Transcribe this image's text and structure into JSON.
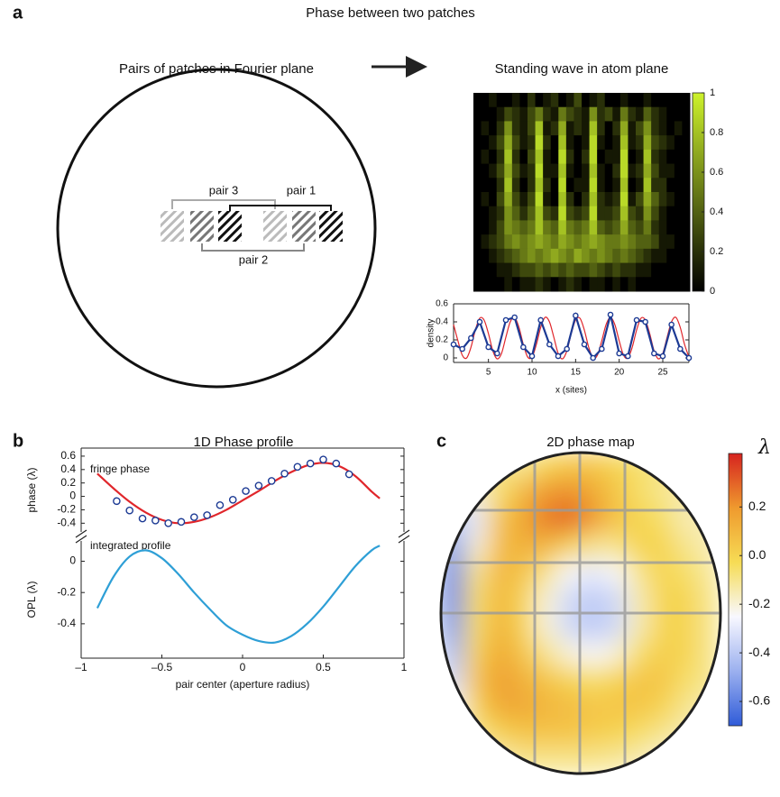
{
  "panels": {
    "a": {
      "label": "a",
      "title": "Phase between two patches",
      "left_title": "Pairs of patches in Fourier plane",
      "right_title": "Standing wave in atom plane",
      "pairs": [
        "pair 3",
        "pair 1",
        "pair 2"
      ]
    },
    "b": {
      "label": "b",
      "title": "1D Phase profile"
    },
    "c": {
      "label": "c",
      "title": "2D phase map"
    }
  },
  "chart_data": [
    {
      "type": "heatmap",
      "values": [
        [
          0,
          0,
          0.1,
          0,
          0,
          0.1,
          0,
          0.2,
          0,
          0.1,
          0.2,
          0,
          0.1,
          0.3,
          0,
          0.1,
          0.2,
          0,
          0,
          0.1,
          0,
          0,
          0.1,
          0,
          0,
          0,
          0,
          0
        ],
        [
          0,
          0,
          0,
          0.1,
          0.3,
          0.2,
          0.1,
          0.3,
          0.5,
          0.2,
          0.1,
          0.5,
          0.3,
          0.2,
          0.1,
          0.6,
          0.2,
          0.3,
          0.1,
          0.5,
          0.2,
          0.1,
          0.4,
          0.2,
          0.1,
          0,
          0,
          0
        ],
        [
          0,
          0.1,
          0,
          0.2,
          0.6,
          0.2,
          0.1,
          0.3,
          0.8,
          0.1,
          0.2,
          0.7,
          0.1,
          0.2,
          0.1,
          0.8,
          0.2,
          0,
          0.2,
          0.7,
          0.1,
          0.3,
          0.6,
          0.2,
          0.1,
          0,
          0.1,
          0
        ],
        [
          0,
          0,
          0.1,
          0.3,
          0.7,
          0.3,
          0.1,
          0.2,
          0.9,
          0.2,
          0,
          0.8,
          0.1,
          0,
          0.1,
          0.9,
          0.1,
          0,
          0.1,
          0.8,
          0.1,
          0.2,
          0.7,
          0.3,
          0.2,
          0.1,
          0,
          0
        ],
        [
          0,
          0.1,
          0,
          0.2,
          0.8,
          0.2,
          0,
          0.3,
          0.8,
          0.1,
          0,
          0.9,
          0.2,
          0,
          0.2,
          0.9,
          0,
          0.1,
          0.1,
          0.9,
          0,
          0.1,
          0.8,
          0.2,
          0.1,
          0,
          0,
          0
        ],
        [
          0,
          0,
          0.1,
          0.3,
          0.7,
          0.3,
          0.1,
          0.2,
          0.9,
          0.1,
          0.1,
          0.8,
          0.1,
          0,
          0.1,
          0.8,
          0.1,
          0,
          0.2,
          0.9,
          0.1,
          0.2,
          0.7,
          0.3,
          0.1,
          0.1,
          0,
          0
        ],
        [
          0,
          0,
          0,
          0.2,
          0.8,
          0.2,
          0,
          0.2,
          0.8,
          0.2,
          0,
          0.9,
          0,
          0.1,
          0.1,
          0.9,
          0.1,
          0,
          0.1,
          0.8,
          0,
          0.1,
          0.8,
          0.2,
          0.2,
          0,
          0,
          0
        ],
        [
          0,
          0.1,
          0,
          0.3,
          0.7,
          0.3,
          0.1,
          0.3,
          0.9,
          0.1,
          0,
          0.8,
          0.2,
          0,
          0.2,
          0.8,
          0.2,
          0.1,
          0.2,
          0.9,
          0.1,
          0.3,
          0.7,
          0.4,
          0.2,
          0.1,
          0,
          0
        ],
        [
          0,
          0,
          0.1,
          0.2,
          0.6,
          0.4,
          0.2,
          0.4,
          0.8,
          0.3,
          0.2,
          0.9,
          0.3,
          0.2,
          0.3,
          0.9,
          0.2,
          0.2,
          0.3,
          0.8,
          0.3,
          0.2,
          0.6,
          0.3,
          0.1,
          0,
          0,
          0
        ],
        [
          0,
          0,
          0.1,
          0.3,
          0.6,
          0.5,
          0.4,
          0.5,
          0.8,
          0.5,
          0.4,
          0.8,
          0.5,
          0.4,
          0.5,
          0.8,
          0.4,
          0.3,
          0.4,
          0.7,
          0.4,
          0.3,
          0.5,
          0.2,
          0.1,
          0,
          0,
          0
        ],
        [
          0,
          0.1,
          0.2,
          0.3,
          0.5,
          0.6,
          0.5,
          0.6,
          0.7,
          0.6,
          0.5,
          0.7,
          0.6,
          0.5,
          0.6,
          0.7,
          0.6,
          0.5,
          0.5,
          0.6,
          0.5,
          0.4,
          0.4,
          0.3,
          0.1,
          0.1,
          0,
          0
        ],
        [
          0,
          0,
          0.1,
          0.2,
          0.3,
          0.4,
          0.5,
          0.6,
          0.5,
          0.6,
          0.7,
          0.6,
          0.5,
          0.7,
          0.6,
          0.5,
          0.6,
          0.5,
          0.4,
          0.5,
          0.4,
          0.3,
          0.2,
          0.1,
          0.1,
          0,
          0,
          0
        ],
        [
          0,
          0,
          0,
          0.1,
          0.1,
          0.2,
          0.3,
          0.3,
          0.4,
          0.3,
          0.4,
          0.3,
          0.4,
          0.3,
          0.3,
          0.4,
          0.3,
          0.2,
          0.3,
          0.2,
          0.2,
          0.1,
          0.1,
          0,
          0,
          0,
          0,
          0
        ],
        [
          0,
          0,
          0,
          0,
          0.1,
          0,
          0.1,
          0.1,
          0.2,
          0.1,
          0,
          0.1,
          0.2,
          0.1,
          0,
          0.1,
          0.1,
          0,
          0.1,
          0,
          0.1,
          0,
          0,
          0,
          0,
          0,
          0,
          0
        ]
      ],
      "zlim": [
        0,
        1
      ],
      "zticks": [
        0,
        0.2,
        0.4,
        0.6,
        0.8,
        1
      ],
      "colormap": [
        "#000000",
        "#cdf22c"
      ]
    },
    {
      "type": "line",
      "xlabel": "x (sites)",
      "ylabel": "density",
      "xlim": [
        1,
        28
      ],
      "xticks": [
        5,
        10,
        15,
        20,
        25
      ],
      "ylim": [
        -0.05,
        0.6
      ],
      "yticks": [
        0,
        0.2,
        0.4,
        0.6
      ],
      "series": [
        {
          "color": "#e0262b",
          "mode": "lines",
          "x": [
            1,
            1.5,
            2,
            2.5,
            3,
            3.5,
            4,
            4.5,
            5,
            5.5,
            6,
            6.5,
            7,
            7.5,
            8,
            8.5,
            9,
            9.5,
            10,
            10.5,
            11,
            11.5,
            12,
            12.5,
            13,
            13.5,
            14,
            14.5,
            15,
            15.5,
            16,
            16.5,
            17,
            17.5,
            18,
            18.5,
            19,
            19.5,
            20,
            20.5,
            21,
            21.5,
            22,
            22.5,
            23,
            23.5,
            24,
            24.5,
            25,
            25.5,
            26,
            26.5,
            27,
            27.5,
            28
          ],
          "values": [
            0.37,
            0.19,
            0.03,
            0.0,
            0.12,
            0.31,
            0.44,
            0.42,
            0.27,
            0.08,
            -0.01,
            0.05,
            0.23,
            0.4,
            0.45,
            0.34,
            0.15,
            0.01,
            0.01,
            0.15,
            0.34,
            0.45,
            0.4,
            0.23,
            0.05,
            -0.01,
            0.08,
            0.27,
            0.42,
            0.44,
            0.31,
            0.12,
            0.0,
            0.03,
            0.19,
            0.37,
            0.45,
            0.37,
            0.19,
            0.03,
            0.0,
            0.12,
            0.31,
            0.44,
            0.42,
            0.27,
            0.08,
            -0.01,
            0.05,
            0.23,
            0.4,
            0.45,
            0.34,
            0.15,
            0.01
          ]
        },
        {
          "color": "#1c3a94",
          "mode": "lines+markers",
          "x": [
            1,
            2,
            3,
            4,
            5,
            6,
            7,
            8,
            9,
            10,
            11,
            12,
            13,
            14,
            15,
            16,
            17,
            18,
            19,
            20,
            21,
            22,
            23,
            24,
            25,
            26,
            27,
            28
          ],
          "values": [
            0.15,
            0.1,
            0.22,
            0.4,
            0.12,
            0.05,
            0.42,
            0.45,
            0.12,
            0.02,
            0.42,
            0.15,
            0.02,
            0.1,
            0.47,
            0.15,
            0.0,
            0.1,
            0.48,
            0.05,
            0.02,
            0.42,
            0.4,
            0.05,
            0.02,
            0.37,
            0.1,
            0.0
          ]
        }
      ]
    },
    {
      "type": "line",
      "ylabel": "phase (λ)",
      "annotation": "fringe phase",
      "xlim": [
        -1,
        1
      ],
      "ylim": [
        -0.53,
        0.72
      ],
      "yticks": [
        -0.4,
        -0.2,
        0,
        0.2,
        0.4,
        0.6
      ],
      "series": [
        {
          "color": "#e0262b",
          "mode": "lines",
          "x": [
            -0.9,
            -0.8,
            -0.7,
            -0.6,
            -0.5,
            -0.4,
            -0.3,
            -0.2,
            -0.1,
            0,
            0.1,
            0.2,
            0.3,
            0.4,
            0.5,
            0.6,
            0.7,
            0.8,
            0.85
          ],
          "values": [
            0.34,
            0.12,
            -0.08,
            -0.24,
            -0.35,
            -0.4,
            -0.38,
            -0.31,
            -0.2,
            -0.06,
            0.08,
            0.23,
            0.36,
            0.46,
            0.5,
            0.45,
            0.3,
            0.07,
            -0.03
          ]
        },
        {
          "color": "#1c3a94",
          "mode": "markers",
          "x": [
            -0.78,
            -0.7,
            -0.62,
            -0.54,
            -0.46,
            -0.38,
            -0.3,
            -0.22,
            -0.14,
            -0.06,
            0.02,
            0.1,
            0.18,
            0.26,
            0.34,
            0.42,
            0.5,
            0.58,
            0.66
          ],
          "values": [
            -0.07,
            -0.21,
            -0.33,
            -0.36,
            -0.4,
            -0.38,
            -0.31,
            -0.28,
            -0.13,
            -0.05,
            0.08,
            0.16,
            0.23,
            0.34,
            0.44,
            0.49,
            0.55,
            0.49,
            0.33
          ]
        }
      ]
    },
    {
      "type": "line",
      "xlabel": "pair center (aperture radius)",
      "ylabel": "OPL (λ)",
      "annotation": "integrated profile",
      "xlim": [
        -1,
        1
      ],
      "xticks": [
        {
          "value": -1,
          "label": "–1"
        },
        {
          "value": -0.5,
          "label": "–0.5"
        },
        0,
        0.5,
        1
      ],
      "ylim": [
        -0.62,
        0.13
      ],
      "yticks": [
        -0.4,
        -0.2,
        0
      ],
      "series": [
        {
          "color": "#2e9fd6",
          "mode": "lines",
          "x": [
            -0.9,
            -0.8,
            -0.7,
            -0.6,
            -0.5,
            -0.4,
            -0.3,
            -0.2,
            -0.1,
            0,
            0.1,
            0.2,
            0.3,
            0.4,
            0.5,
            0.6,
            0.7,
            0.8,
            0.85
          ],
          "values": [
            -0.3,
            -0.1,
            0.03,
            0.07,
            0.02,
            -0.08,
            -0.2,
            -0.31,
            -0.41,
            -0.47,
            -0.51,
            -0.52,
            -0.48,
            -0.4,
            -0.29,
            -0.16,
            -0.03,
            0.07,
            0.1
          ]
        }
      ]
    },
    {
      "type": "heatmap",
      "zlabel": "λ",
      "values": [
        [
          -0.1,
          -0.1,
          -0.1,
          -0.1,
          0.0,
          0.05,
          0.05,
          0.0,
          -0.05,
          -0.1,
          -0.1,
          -0.1
        ],
        [
          -0.2,
          -0.2,
          -0.05,
          0.1,
          0.2,
          0.22,
          0.15,
          0.05,
          -0.05,
          -0.1,
          -0.15,
          -0.15
        ],
        [
          -0.4,
          -0.3,
          0.05,
          0.15,
          0.25,
          0.3,
          0.2,
          0.05,
          0.0,
          -0.05,
          -0.15,
          -0.15
        ],
        [
          -0.55,
          -0.2,
          0.08,
          0.12,
          0.1,
          0.0,
          -0.1,
          -0.1,
          0.0,
          0.0,
          -0.1,
          -0.15
        ],
        [
          -0.6,
          -0.1,
          0.1,
          0.05,
          -0.1,
          -0.25,
          -0.3,
          -0.25,
          -0.1,
          0.0,
          -0.05,
          -0.12
        ],
        [
          -0.6,
          -0.05,
          0.1,
          0.0,
          -0.2,
          -0.35,
          -0.4,
          -0.35,
          -0.15,
          0.0,
          0.0,
          -0.1
        ],
        [
          -0.55,
          -0.05,
          0.12,
          0.0,
          -0.2,
          -0.35,
          -0.4,
          -0.35,
          -0.15,
          0.0,
          0.0,
          -0.1
        ],
        [
          -0.45,
          0.0,
          0.15,
          0.05,
          -0.1,
          -0.2,
          -0.25,
          -0.2,
          -0.05,
          0.02,
          0.0,
          -0.1
        ],
        [
          -0.35,
          0.05,
          0.18,
          0.12,
          0.05,
          0.0,
          -0.05,
          0.0,
          0.05,
          0.05,
          -0.05,
          -0.1
        ],
        [
          -0.25,
          0.0,
          0.15,
          0.15,
          0.1,
          0.08,
          0.05,
          0.05,
          0.05,
          0.0,
          -0.1,
          -0.15
        ],
        [
          -0.2,
          -0.1,
          0.0,
          0.05,
          0.05,
          0.05,
          0.02,
          0.0,
          -0.05,
          -0.1,
          -0.15,
          -0.2
        ],
        [
          -0.2,
          -0.2,
          -0.15,
          -0.1,
          -0.1,
          -0.1,
          -0.1,
          -0.12,
          -0.15,
          -0.2,
          -0.2,
          -0.2
        ]
      ],
      "zlim": [
        -0.7,
        0.42
      ],
      "zticks": [
        0.2,
        {
          "value": 0,
          "label": "0.0"
        },
        -0.2,
        -0.4,
        -0.6
      ],
      "colormap": [
        "#2f5bd8",
        "#9bb0ef",
        "#f8f8ff",
        "#f6dc55",
        "#ef9a2e",
        "#d6231f"
      ]
    }
  ]
}
